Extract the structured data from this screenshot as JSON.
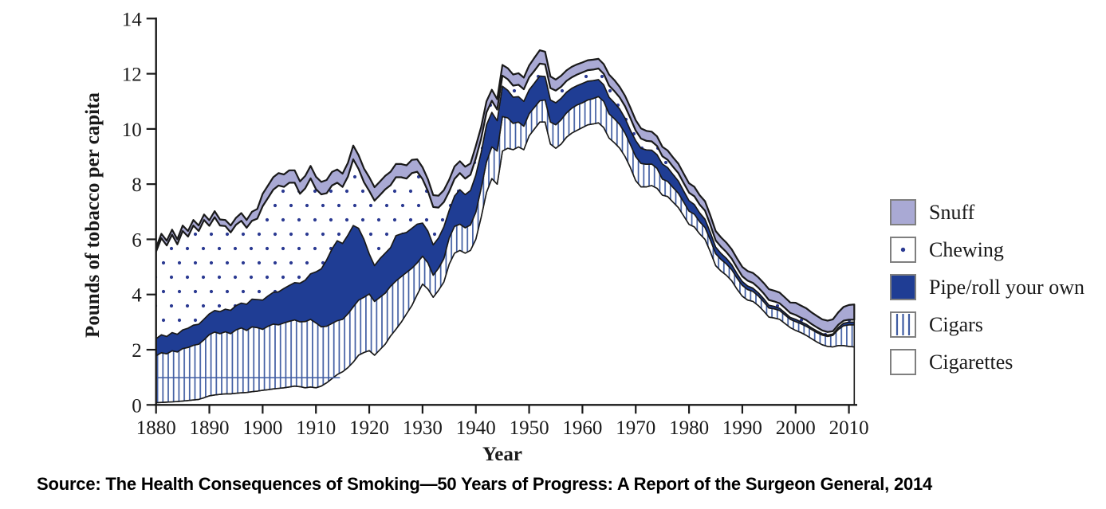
{
  "figure": {
    "y_axis_label": "Pounds of tobacco per capita",
    "x_axis_label": "Year",
    "source_caption": "Source: The Health Consequences of Smoking—50 Years of Progress: A Report of the Surgeon General, 2014"
  },
  "legend": {
    "position": "right",
    "items": [
      {
        "label": "Snuff",
        "swatch": "solid-lavender"
      },
      {
        "label": "Chewing",
        "swatch": "dot"
      },
      {
        "label": "Pipe/roll your own",
        "swatch": "solid-dark-blue"
      },
      {
        "label": "Cigars",
        "swatch": "vertical-stripes"
      },
      {
        "label": "Cigarettes",
        "swatch": "white"
      }
    ]
  },
  "chart_data": {
    "type": "area",
    "stacked": true,
    "title": "",
    "xlabel": "Year",
    "ylabel": "Pounds of tobacco per capita",
    "xlim": [
      1880,
      2011
    ],
    "ylim": [
      0,
      14
    ],
    "x_ticks": [
      1880,
      1890,
      1900,
      1910,
      1920,
      1930,
      1940,
      1950,
      1960,
      1970,
      1980,
      1990,
      2000,
      2010
    ],
    "y_ticks": [
      0,
      2,
      4,
      6,
      8,
      10,
      12,
      14
    ],
    "grid": false,
    "x_start_year": 1880,
    "x_step_years": 1,
    "stack_order_bottom_to_top": [
      "Cigarettes",
      "Cigars",
      "Pipe/roll your own",
      "Chewing",
      "Snuff"
    ],
    "units": "pounds of tobacco per capita (annual, estimated from plot)",
    "series": [
      {
        "name": "Cigarettes",
        "style": "white",
        "values": [
          0.08,
          0.09,
          0.1,
          0.11,
          0.12,
          0.14,
          0.16,
          0.18,
          0.2,
          0.26,
          0.33,
          0.36,
          0.38,
          0.4,
          0.4,
          0.42,
          0.44,
          0.45,
          0.48,
          0.5,
          0.53,
          0.55,
          0.58,
          0.6,
          0.62,
          0.65,
          0.68,
          0.66,
          0.62,
          0.65,
          0.62,
          0.68,
          0.8,
          0.95,
          1.1,
          1.2,
          1.35,
          1.55,
          1.8,
          1.9,
          1.97,
          1.8,
          2.0,
          2.2,
          2.5,
          2.74,
          3.0,
          3.3,
          3.6,
          4.0,
          4.38,
          4.2,
          3.9,
          4.15,
          4.45,
          5.1,
          5.5,
          5.6,
          5.5,
          5.6,
          6.0,
          6.8,
          7.7,
          8.2,
          8.0,
          9.2,
          9.3,
          9.25,
          9.35,
          9.25,
          9.75,
          10.0,
          10.25,
          10.25,
          9.45,
          9.3,
          9.45,
          9.7,
          9.85,
          9.95,
          10.05,
          10.15,
          10.18,
          10.22,
          10.05,
          9.67,
          9.5,
          9.3,
          9.0,
          8.6,
          8.13,
          7.9,
          7.9,
          7.95,
          7.85,
          7.6,
          7.55,
          7.35,
          7.15,
          6.85,
          6.54,
          6.45,
          6.2,
          6.0,
          5.55,
          5.05,
          4.85,
          4.7,
          4.5,
          4.2,
          3.94,
          3.8,
          3.75,
          3.6,
          3.4,
          3.18,
          3.15,
          3.1,
          2.95,
          2.8,
          2.7,
          2.62,
          2.52,
          2.4,
          2.28,
          2.18,
          2.12,
          2.1,
          2.15,
          2.15,
          2.12,
          2.1
        ]
      },
      {
        "name": "Cigars",
        "style": "vertical-stripes",
        "values": [
          1.7,
          1.8,
          1.75,
          1.85,
          1.8,
          1.9,
          1.92,
          1.98,
          2.0,
          2.1,
          2.22,
          2.28,
          2.2,
          2.25,
          2.18,
          2.3,
          2.35,
          2.25,
          2.35,
          2.3,
          2.21,
          2.3,
          2.35,
          2.3,
          2.35,
          2.38,
          2.4,
          2.35,
          2.4,
          2.45,
          2.35,
          2.15,
          2.05,
          2.0,
          1.95,
          1.9,
          1.95,
          2.0,
          2.0,
          2.0,
          2.05,
          1.95,
          1.9,
          1.85,
          1.8,
          1.75,
          1.65,
          1.5,
          1.35,
          1.15,
          1.01,
          0.95,
          0.8,
          0.8,
          0.85,
          0.95,
          0.97,
          0.95,
          0.92,
          0.92,
          0.98,
          1.05,
          1.1,
          1.15,
          1.2,
          1.25,
          1.1,
          0.95,
          0.9,
          0.85,
          0.8,
          0.78,
          0.77,
          0.8,
          0.8,
          0.85,
          0.88,
          0.88,
          0.9,
          0.92,
          0.9,
          0.9,
          0.92,
          0.95,
          0.95,
          0.88,
          0.87,
          0.86,
          0.85,
          0.83,
          0.87,
          0.85,
          0.82,
          0.78,
          0.72,
          0.58,
          0.55,
          0.53,
          0.52,
          0.5,
          0.48,
          0.46,
          0.44,
          0.43,
          0.43,
          0.43,
          0.42,
          0.41,
          0.4,
          0.4,
          0.39,
          0.38,
          0.36,
          0.35,
          0.34,
          0.33,
          0.33,
          0.32,
          0.31,
          0.3,
          0.32,
          0.32,
          0.33,
          0.33,
          0.34,
          0.35,
          0.36,
          0.42,
          0.58,
          0.72,
          0.78,
          0.8
        ]
      },
      {
        "name": "Pipe/roll your own",
        "style": "solid-dark-blue",
        "values": [
          0.62,
          0.65,
          0.63,
          0.66,
          0.64,
          0.68,
          0.7,
          0.73,
          0.72,
          0.75,
          0.75,
          0.78,
          0.8,
          0.82,
          0.85,
          0.88,
          0.9,
          0.95,
          1.0,
          1.02,
          1.06,
          1.1,
          1.15,
          1.2,
          1.25,
          1.3,
          1.35,
          1.4,
          1.5,
          1.65,
          1.85,
          2.1,
          2.4,
          2.7,
          2.9,
          2.75,
          2.85,
          2.95,
          2.6,
          2.1,
          1.45,
          1.3,
          1.4,
          1.45,
          1.4,
          1.64,
          1.55,
          1.45,
          1.45,
          1.4,
          1.2,
          1.15,
          1.1,
          1.1,
          1.15,
          1.0,
          1.1,
          1.25,
          1.2,
          1.25,
          1.35,
          1.3,
          1.35,
          1.25,
          1.1,
          1.1,
          1.0,
          0.95,
          0.92,
          0.9,
          0.87,
          0.88,
          0.9,
          0.85,
          0.8,
          0.8,
          0.78,
          0.75,
          0.72,
          0.7,
          0.7,
          0.68,
          0.65,
          0.62,
          0.6,
          0.6,
          0.58,
          0.56,
          0.54,
          0.52,
          0.58,
          0.55,
          0.52,
          0.5,
          0.5,
          0.55,
          0.5,
          0.47,
          0.44,
          0.4,
          0.38,
          0.35,
          0.32,
          0.3,
          0.27,
          0.24,
          0.22,
          0.2,
          0.18,
          0.16,
          0.14,
          0.13,
          0.12,
          0.11,
          0.11,
          0.1,
          0.09,
          0.08,
          0.08,
          0.07,
          0.08,
          0.07,
          0.07,
          0.06,
          0.06,
          0.05,
          0.05,
          0.05,
          0.07,
          0.09,
          0.1,
          0.1
        ]
      },
      {
        "name": "Chewing",
        "style": "dots",
        "values": [
          3.15,
          3.5,
          3.3,
          3.55,
          3.26,
          3.58,
          3.32,
          3.61,
          3.38,
          3.59,
          3.19,
          3.38,
          3.12,
          3.01,
          2.82,
          2.93,
          2.98,
          2.77,
          2.84,
          2.93,
          3.4,
          3.55,
          3.72,
          3.85,
          3.68,
          3.72,
          3.62,
          3.24,
          3.33,
          3.46,
          3.0,
          2.7,
          2.42,
          2.3,
          2.1,
          2.05,
          2.12,
          2.4,
          2.15,
          2.07,
          2.28,
          2.35,
          2.3,
          2.31,
          2.26,
          2.12,
          2.05,
          1.95,
          2.0,
          1.9,
          1.59,
          1.45,
          1.37,
          1.1,
          0.9,
          0.68,
          0.62,
          0.6,
          0.58,
          0.57,
          0.6,
          0.5,
          0.45,
          0.42,
          0.4,
          0.38,
          0.4,
          0.42,
          0.43,
          0.44,
          0.45,
          0.45,
          0.45,
          0.44,
          0.43,
          0.44,
          0.42,
          0.41,
          0.4,
          0.4,
          0.4,
          0.4,
          0.4,
          0.4,
          0.4,
          0.42,
          0.42,
          0.42,
          0.43,
          0.44,
          0.36,
          0.35,
          0.33,
          0.32,
          0.31,
          0.28,
          0.28,
          0.28,
          0.29,
          0.29,
          0.29,
          0.3,
          0.3,
          0.31,
          0.28,
          0.24,
          0.24,
          0.23,
          0.22,
          0.21,
          0.19,
          0.19,
          0.19,
          0.19,
          0.19,
          0.19,
          0.18,
          0.18,
          0.17,
          0.16,
          0.16,
          0.15,
          0.15,
          0.14,
          0.13,
          0.12,
          0.11,
          0.1,
          0.1,
          0.09,
          0.09,
          0.09
        ]
      },
      {
        "name": "Snuff",
        "style": "solid-lavender",
        "values": [
          0.15,
          0.16,
          0.17,
          0.18,
          0.18,
          0.2,
          0.2,
          0.2,
          0.2,
          0.2,
          0.2,
          0.22,
          0.22,
          0.22,
          0.25,
          0.25,
          0.28,
          0.28,
          0.33,
          0.35,
          0.45,
          0.45,
          0.45,
          0.45,
          0.45,
          0.45,
          0.45,
          0.45,
          0.45,
          0.45,
          0.45,
          0.45,
          0.48,
          0.49,
          0.48,
          0.48,
          0.5,
          0.5,
          0.5,
          0.5,
          0.5,
          0.49,
          0.49,
          0.49,
          0.49,
          0.48,
          0.48,
          0.48,
          0.48,
          0.45,
          0.43,
          0.43,
          0.43,
          0.43,
          0.43,
          0.43,
          0.45,
          0.43,
          0.43,
          0.41,
          0.45,
          0.42,
          0.4,
          0.4,
          0.38,
          0.39,
          0.4,
          0.4,
          0.42,
          0.42,
          0.43,
          0.47,
          0.48,
          0.46,
          0.42,
          0.4,
          0.4,
          0.38,
          0.38,
          0.37,
          0.36,
          0.36,
          0.36,
          0.35,
          0.35,
          0.4,
          0.4,
          0.38,
          0.38,
          0.38,
          0.38,
          0.37,
          0.36,
          0.35,
          0.35,
          0.34,
          0.34,
          0.34,
          0.34,
          0.34,
          0.34,
          0.34,
          0.34,
          0.34,
          0.34,
          0.34,
          0.34,
          0.34,
          0.34,
          0.34,
          0.34,
          0.35,
          0.36,
          0.37,
          0.38,
          0.39,
          0.39,
          0.39,
          0.38,
          0.38,
          0.44,
          0.44,
          0.43,
          0.42,
          0.41,
          0.4,
          0.41,
          0.43,
          0.45,
          0.5,
          0.53,
          0.55
        ]
      }
    ],
    "annotation_line": {
      "value": 1.0,
      "from_year": 1880,
      "to_year": 1914.5
    },
    "colors": {
      "snuff_lavender": "#a9a9d4",
      "pipe_blue": "#1f3d94",
      "stripe_blue": "#3f5ca2",
      "dot_navy": "#2b3a92",
      "outline": "#191919",
      "axis": "#1a1a1a",
      "legend_border": "#7f7f7f",
      "background": "#ffffff"
    }
  }
}
